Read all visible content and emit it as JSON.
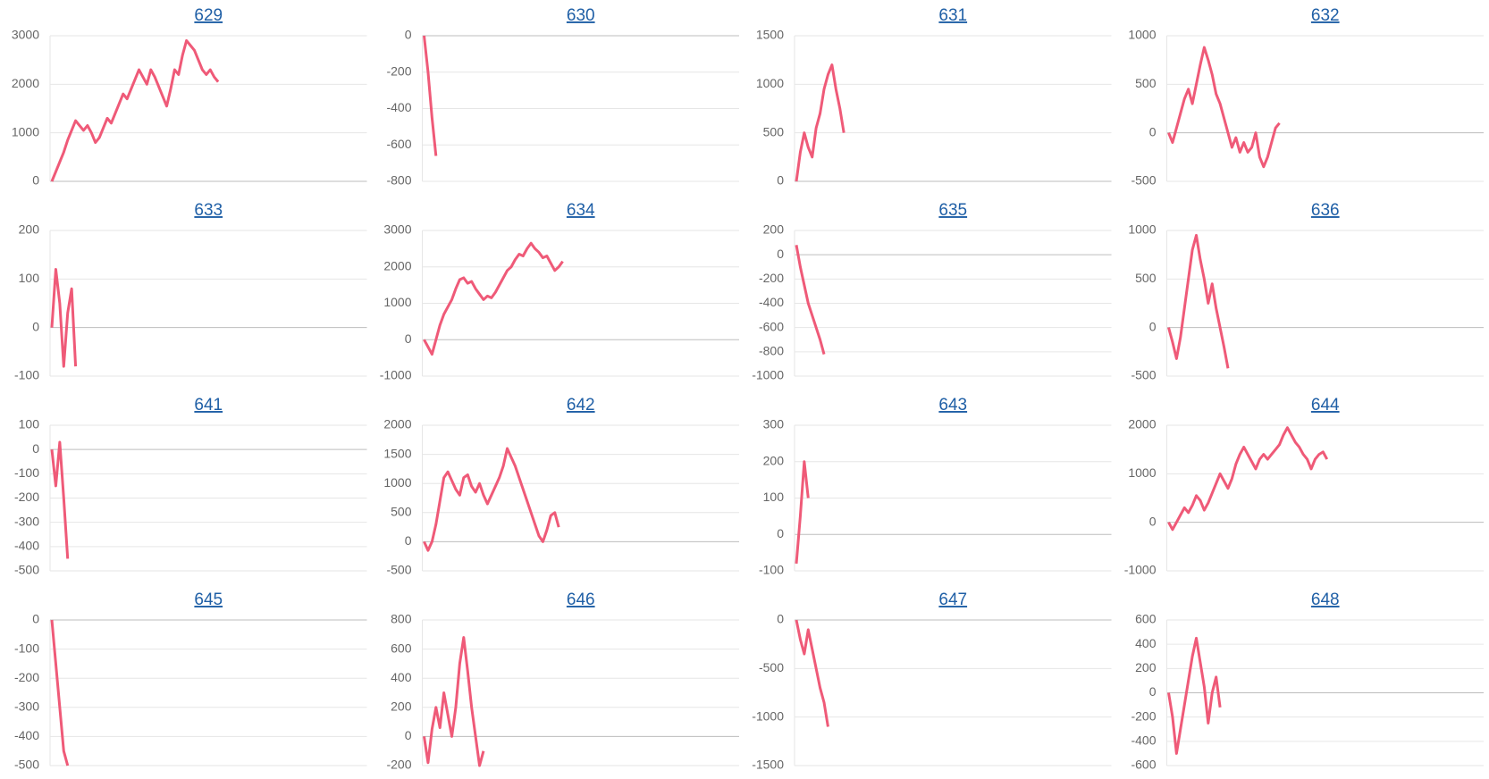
{
  "chart_data": [
    {
      "type": "line",
      "title": "629",
      "color": "#ef5a78",
      "grid": true,
      "ylim": [
        0,
        3000
      ],
      "yticks": [
        0,
        1000,
        2000,
        3000
      ],
      "values": [
        0,
        200,
        400,
        600,
        850,
        1050,
        1250,
        1150,
        1050,
        1150,
        1000,
        800,
        900,
        1100,
        1300,
        1200,
        1400,
        1600,
        1800,
        1700,
        1900,
        2100,
        2300,
        2150,
        2000,
        2300,
        2150,
        1950,
        1750,
        1550,
        1900,
        2300,
        2200,
        2600,
        2900,
        2800,
        2700,
        2500,
        2300,
        2200,
        2300,
        2150,
        2050
      ]
    },
    {
      "type": "line",
      "title": "630",
      "color": "#ef5a78",
      "grid": true,
      "ylim": [
        -800,
        0
      ],
      "yticks": [
        -800,
        -600,
        -400,
        -200,
        0
      ],
      "values": [
        0,
        -200,
        -450,
        -660
      ]
    },
    {
      "type": "line",
      "title": "631",
      "color": "#ef5a78",
      "grid": true,
      "ylim": [
        0,
        1500
      ],
      "yticks": [
        0,
        500,
        1000,
        1500
      ],
      "values": [
        0,
        300,
        500,
        350,
        250,
        550,
        700,
        950,
        1100,
        1200,
        950,
        750,
        500
      ]
    },
    {
      "type": "line",
      "title": "632",
      "color": "#ef5a78",
      "grid": true,
      "ylim": [
        -500,
        1000
      ],
      "yticks": [
        -500,
        0,
        500,
        1000
      ],
      "values": [
        0,
        -100,
        50,
        200,
        350,
        450,
        300,
        500,
        700,
        880,
        750,
        600,
        400,
        300,
        150,
        0,
        -150,
        -50,
        -200,
        -100,
        -200,
        -150,
        0,
        -250,
        -350,
        -250,
        -100,
        50,
        100
      ]
    },
    {
      "type": "line",
      "title": "633",
      "color": "#ef5a78",
      "grid": true,
      "ylim": [
        -100,
        200
      ],
      "yticks": [
        -100,
        0,
        100,
        200
      ],
      "values": [
        0,
        120,
        50,
        -80,
        30,
        80,
        -80
      ]
    },
    {
      "type": "line",
      "title": "634",
      "color": "#ef5a78",
      "grid": true,
      "ylim": [
        -1000,
        3000
      ],
      "yticks": [
        -1000,
        0,
        1000,
        2000,
        3000
      ],
      "values": [
        0,
        -200,
        -400,
        0,
        400,
        700,
        900,
        1100,
        1400,
        1650,
        1700,
        1550,
        1600,
        1400,
        1250,
        1100,
        1200,
        1150,
        1300,
        1500,
        1700,
        1900,
        2000,
        2200,
        2350,
        2300,
        2500,
        2650,
        2500,
        2400,
        2250,
        2300,
        2100,
        1900,
        2000,
        2150
      ]
    },
    {
      "type": "line",
      "title": "635",
      "color": "#ef5a78",
      "grid": true,
      "ylim": [
        -1000,
        200
      ],
      "yticks": [
        -1000,
        -800,
        -600,
        -400,
        -200,
        0,
        200
      ],
      "values": [
        80,
        -100,
        -250,
        -400,
        -500,
        -600,
        -700,
        -820
      ]
    },
    {
      "type": "line",
      "title": "636",
      "color": "#ef5a78",
      "grid": true,
      "ylim": [
        -500,
        1000
      ],
      "yticks": [
        -500,
        0,
        500,
        1000
      ],
      "values": [
        0,
        -150,
        -320,
        -100,
        200,
        500,
        800,
        950,
        700,
        500,
        250,
        450,
        200,
        0,
        -200,
        -420
      ]
    },
    {
      "type": "line",
      "title": "641",
      "color": "#ef5a78",
      "grid": true,
      "ylim": [
        -500,
        100
      ],
      "yticks": [
        -500,
        -400,
        -300,
        -200,
        -100,
        0,
        100
      ],
      "values": [
        0,
        -150,
        30,
        -200,
        -450
      ]
    },
    {
      "type": "line",
      "title": "642",
      "color": "#ef5a78",
      "grid": true,
      "ylim": [
        -500,
        2000
      ],
      "yticks": [
        -500,
        0,
        500,
        1000,
        1500,
        2000
      ],
      "values": [
        0,
        -150,
        0,
        300,
        700,
        1100,
        1200,
        1050,
        900,
        800,
        1100,
        1150,
        950,
        850,
        1000,
        800,
        650,
        800,
        950,
        1100,
        1300,
        1600,
        1450,
        1300,
        1100,
        900,
        700,
        500,
        300,
        100,
        0,
        200,
        450,
        500,
        250
      ]
    },
    {
      "type": "line",
      "title": "643",
      "color": "#ef5a78",
      "grid": true,
      "ylim": [
        -100,
        300
      ],
      "yticks": [
        -100,
        0,
        100,
        200,
        300
      ],
      "values": [
        -80,
        50,
        200,
        100
      ]
    },
    {
      "type": "line",
      "title": "644",
      "color": "#ef5a78",
      "grid": true,
      "ylim": [
        -1000,
        2000
      ],
      "yticks": [
        -1000,
        0,
        1000,
        2000
      ],
      "values": [
        0,
        -150,
        0,
        150,
        300,
        200,
        350,
        550,
        450,
        250,
        400,
        600,
        800,
        1000,
        850,
        700,
        900,
        1200,
        1400,
        1550,
        1400,
        1250,
        1100,
        1300,
        1400,
        1300,
        1400,
        1500,
        1600,
        1800,
        1950,
        1800,
        1650,
        1550,
        1400,
        1300,
        1100,
        1300,
        1400,
        1450,
        1300
      ]
    },
    {
      "type": "line",
      "title": "645",
      "color": "#ef5a78",
      "grid": true,
      "ylim": [
        -500,
        0
      ],
      "yticks": [
        -500,
        -400,
        -300,
        -200,
        -100,
        0
      ],
      "values": [
        0,
        -150,
        -300,
        -450,
        -500
      ]
    },
    {
      "type": "line",
      "title": "646",
      "color": "#ef5a78",
      "grid": true,
      "ylim": [
        -200,
        800
      ],
      "yticks": [
        -200,
        0,
        200,
        400,
        600,
        800
      ],
      "values": [
        0,
        -180,
        50,
        200,
        60,
        300,
        150,
        0,
        200,
        500,
        680,
        450,
        200,
        0,
        -200,
        -100
      ]
    },
    {
      "type": "line",
      "title": "647",
      "color": "#ef5a78",
      "grid": true,
      "ylim": [
        -1500,
        0
      ],
      "yticks": [
        -1500,
        -1000,
        -500,
        0
      ],
      "values": [
        0,
        -200,
        -350,
        -100,
        -300,
        -500,
        -700,
        -850,
        -1100
      ]
    },
    {
      "type": "line",
      "title": "648",
      "color": "#ef5a78",
      "grid": true,
      "ylim": [
        -600,
        600
      ],
      "yticks": [
        -600,
        -400,
        -200,
        0,
        200,
        400,
        600
      ],
      "values": [
        0,
        -200,
        -500,
        -300,
        -100,
        100,
        300,
        450,
        250,
        50,
        -250,
        0,
        130,
        -120
      ]
    }
  ]
}
